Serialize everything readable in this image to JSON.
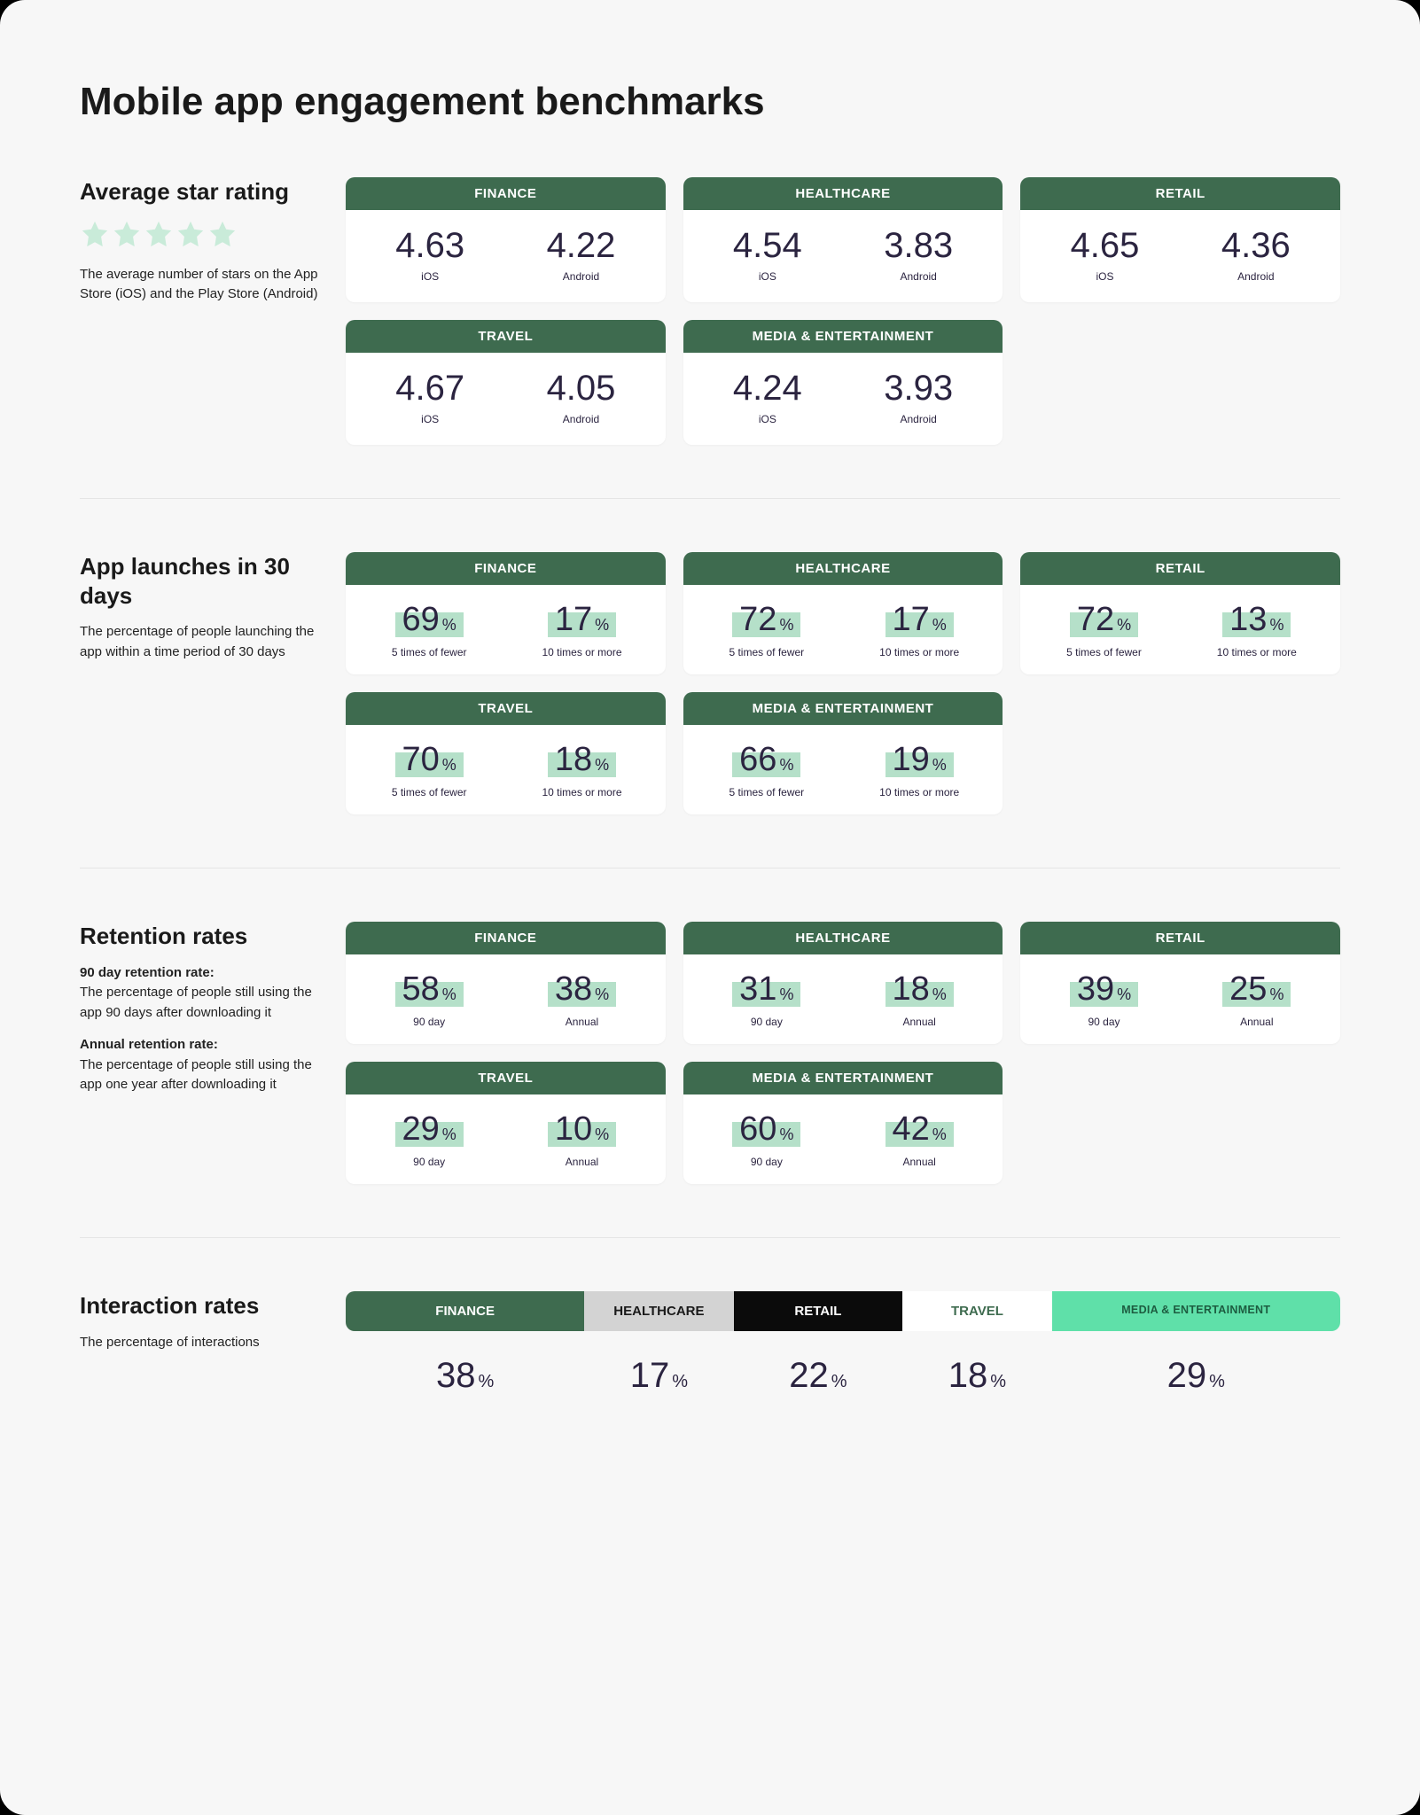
{
  "title": "Mobile app engagement benchmarks",
  "colors": {
    "header_green": "#3e6b4f",
    "highlight_green": "#b5e0c9",
    "bright_green": "#5fe0a9",
    "light_grey": "#d3d3d3",
    "black_tab": "#0b0b0b",
    "card_bg": "#ffffff",
    "page_bg": "#f7f7f7",
    "star_color": "#c9ebd9",
    "value_text": "#2b2440"
  },
  "categories": [
    "FINANCE",
    "HEALTHCARE",
    "RETAIL",
    "TRAVEL",
    "MEDIA & ENTERTAINMENT"
  ],
  "platforms": {
    "ios": "iOS",
    "android": "Android"
  },
  "sections": {
    "star_rating": {
      "heading": "Average star rating",
      "stars": 5,
      "desc": "The average number of stars on the App Store (iOS) and the Play Store (Android)",
      "cards": [
        {
          "category": "FINANCE",
          "ios": "4.63",
          "android": "4.22"
        },
        {
          "category": "HEALTHCARE",
          "ios": "4.54",
          "android": "3.83"
        },
        {
          "category": "RETAIL",
          "ios": "4.65",
          "android": "4.36"
        },
        {
          "category": "TRAVEL",
          "ios": "4.67",
          "android": "4.05"
        },
        {
          "category": "MEDIA & ENTERTAINMENT",
          "ios": "4.24",
          "android": "3.93"
        }
      ]
    },
    "app_launches": {
      "heading": "App launches in 30 days",
      "desc": "The percentage of people launching the app within a time period of 30 days",
      "labels": {
        "low": "5 times of fewer",
        "high": "10 times or more"
      },
      "cards": [
        {
          "category": "FINANCE",
          "low": "69",
          "high": "17"
        },
        {
          "category": "HEALTHCARE",
          "low": "72",
          "high": "17"
        },
        {
          "category": "RETAIL",
          "low": "72",
          "high": "13"
        },
        {
          "category": "TRAVEL",
          "low": "70",
          "high": "18"
        },
        {
          "category": "MEDIA & ENTERTAINMENT",
          "low": "66",
          "high": "19"
        }
      ]
    },
    "retention": {
      "heading": "Retention rates",
      "desc1_label": "90 day retention rate:",
      "desc1_body": "The percentage of people still using the app 90 days after downloading it",
      "desc2_label": "Annual retention rate:",
      "desc2_body": "The percentage of people still using the app one year after downloading it",
      "labels": {
        "ninety": "90 day",
        "annual": "Annual"
      },
      "cards": [
        {
          "category": "FINANCE",
          "ninety": "58",
          "annual": "38"
        },
        {
          "category": "HEALTHCARE",
          "ninety": "31",
          "annual": "18"
        },
        {
          "category": "RETAIL",
          "ninety": "39",
          "annual": "25"
        },
        {
          "category": "TRAVEL",
          "ninety": "29",
          "annual": "10"
        },
        {
          "category": "MEDIA & ENTERTAINMENT",
          "ninety": "60",
          "annual": "42"
        }
      ]
    },
    "interaction": {
      "heading": "Interaction rates",
      "desc": "The percentage of interactions",
      "tabs": [
        {
          "label": "FINANCE",
          "bg": "#3e6b4f",
          "fg": "#ffffff",
          "width": 24
        },
        {
          "label": "HEALTHCARE",
          "bg": "#d3d3d3",
          "fg": "#1a1a1a",
          "width": 15
        },
        {
          "label": "RETAIL",
          "bg": "#0b0b0b",
          "fg": "#ffffff",
          "width": 17
        },
        {
          "label": "TRAVEL",
          "bg": "#ffffff",
          "fg": "#3e6b4f",
          "width": 15
        },
        {
          "label": "MEDIA & ENTERTAINMENT",
          "bg": "#5fe0a9",
          "fg": "#1d5c40",
          "width": 29,
          "small": true
        }
      ],
      "values": [
        "38",
        "17",
        "22",
        "18",
        "29"
      ]
    }
  },
  "pct_sign": "%"
}
